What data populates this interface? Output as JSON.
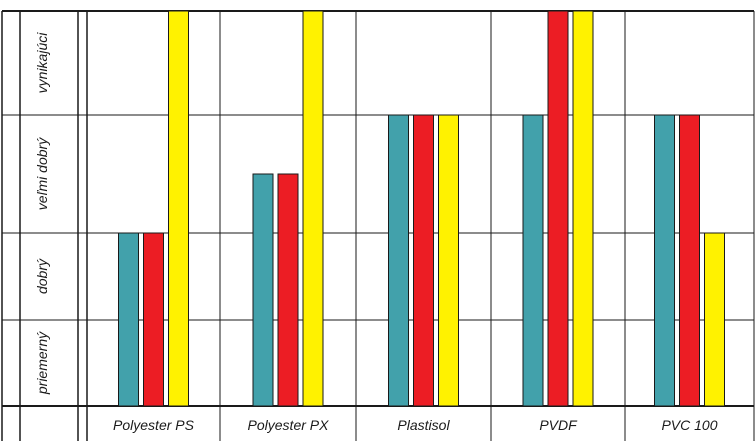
{
  "chart_data": {
    "type": "bar",
    "title": "",
    "xlabel": "",
    "ylabel": "",
    "categories": [
      "Polyester PS",
      "Polyester PX",
      "Plastisol",
      "PVDF",
      "PVC 100"
    ],
    "y_levels": [
      "priemerný",
      "dobrý",
      "veľmi dobrý",
      "vynikajúci"
    ],
    "ylim": [
      0,
      4
    ],
    "legend": "none",
    "grid": true,
    "series": [
      {
        "color": "#42a1ab",
        "values": [
          2.0,
          2.5,
          3.0,
          3.0,
          3.0
        ]
      },
      {
        "color": "#ec1d24",
        "values": [
          2.0,
          2.5,
          3.0,
          4.0,
          3.0
        ]
      },
      {
        "color": "#fff200",
        "values": [
          4.0,
          4.0,
          3.0,
          4.0,
          2.0
        ]
      }
    ]
  }
}
